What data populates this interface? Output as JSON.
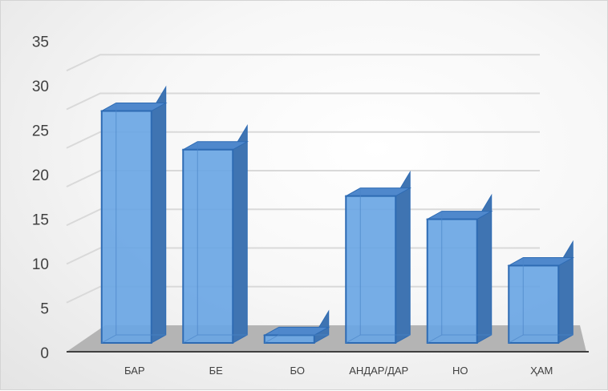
{
  "chart_data": {
    "type": "bar",
    "categories": [
      "БАР",
      "БЕ",
      "БО",
      "АНДАР/ДАР",
      "НО",
      "ҲАМ"
    ],
    "values": [
      30,
      25,
      1,
      19,
      16,
      10
    ],
    "ylim": [
      0,
      35
    ],
    "yticks": [
      "0",
      "5",
      "10",
      "15",
      "20",
      "25",
      "30",
      "35"
    ],
    "grid": true,
    "style": "3d-column",
    "colors": {
      "bar_front": "#6aa6e4",
      "bar_side": "#3f74b2",
      "bar_top": "#4f88cc",
      "bar_edge": "#2e6bb3",
      "floor": "#b4b4b4"
    }
  }
}
